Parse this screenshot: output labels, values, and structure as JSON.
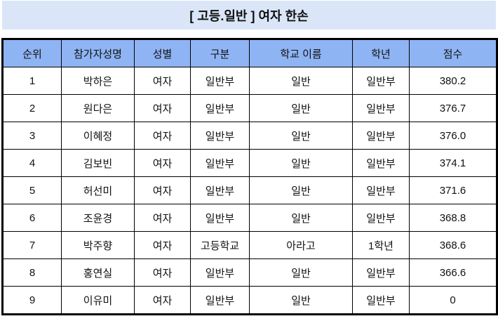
{
  "title": "[ 고등.일반 ] 여자 한손",
  "columns": [
    "순위",
    "참가자성명",
    "성별",
    "구분",
    "학교 이름",
    "학년",
    "점수"
  ],
  "rows": [
    [
      "1",
      "박하은",
      "여자",
      "일반부",
      "일반",
      "일반부",
      "380.2"
    ],
    [
      "2",
      "원다은",
      "여자",
      "일반부",
      "일반",
      "일반부",
      "376.7"
    ],
    [
      "3",
      "이혜정",
      "여자",
      "일반부",
      "일반",
      "일반부",
      "376.0"
    ],
    [
      "4",
      "김보빈",
      "여자",
      "일반부",
      "일반",
      "일반부",
      "374.1"
    ],
    [
      "5",
      "허선미",
      "여자",
      "일반부",
      "일반",
      "일반부",
      "371.6"
    ],
    [
      "6",
      "조윤경",
      "여자",
      "일반부",
      "일반",
      "일반부",
      "368.8"
    ],
    [
      "7",
      "박주향",
      "여자",
      "고등학교",
      "아라고",
      "1학년",
      "368.6"
    ],
    [
      "8",
      "홍연실",
      "여자",
      "일반부",
      "일반",
      "일반부",
      "366.6"
    ],
    [
      "9",
      "이유미",
      "여자",
      "일반부",
      "일반",
      "일반부",
      "0"
    ]
  ],
  "colors": {
    "title_bg": "#dae6f8",
    "header_bg": "#8fb4f4"
  }
}
